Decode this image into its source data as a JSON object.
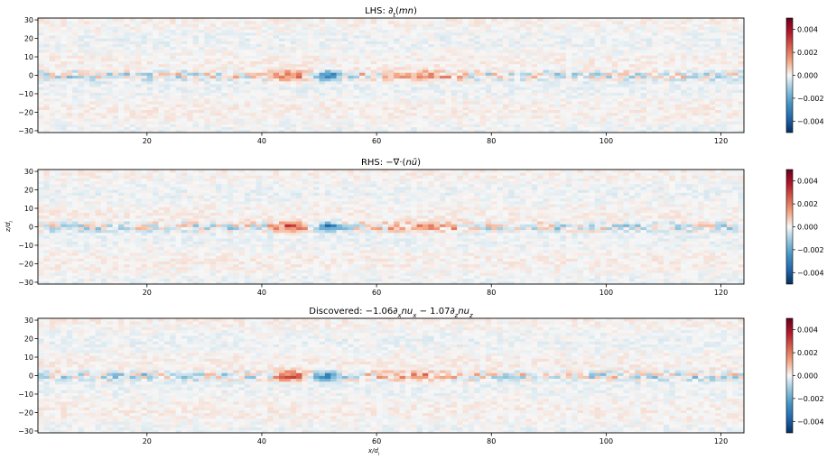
{
  "figure": {
    "xlabel": "x/d",
    "xlabel_sub": "i",
    "ylabel": "z/d",
    "ylabel_sub": "i"
  },
  "chart_data": [
    {
      "type": "heatmap",
      "title": "LHS: ∂t(mn)",
      "title_parts": [
        "LHS: ∂",
        "t",
        "(",
        "mn",
        ")"
      ],
      "xlim": [
        1,
        124
      ],
      "ylim": [
        -31,
        31
      ],
      "xticks": [
        20,
        40,
        60,
        80,
        100,
        120
      ],
      "yticks": [
        30,
        20,
        10,
        0,
        -10,
        -20,
        -30
      ],
      "colormap": "RdBu_r",
      "clim": [
        -0.005,
        0.005
      ],
      "colorbar_ticks": [
        "0.004",
        "0.002",
        "0.000",
        "−0.002",
        "−0.004"
      ],
      "colorbar_values": [
        0.004,
        0.002,
        0.0,
        -0.002,
        -0.004
      ],
      "colors": {
        "positive_peak": "#67001f",
        "negative_peak": "#053061",
        "zero": "#f7f7f7"
      }
    },
    {
      "type": "heatmap",
      "title": "RHS: −∇·(nū)",
      "title_parts": [
        "RHS: −∇·(",
        "nū",
        ")"
      ],
      "xlim": [
        1,
        124
      ],
      "ylim": [
        -31,
        31
      ],
      "xticks": [
        20,
        40,
        60,
        80,
        100,
        120
      ],
      "yticks": [
        30,
        20,
        10,
        0,
        -10,
        -20,
        -30
      ],
      "colormap": "RdBu_r",
      "clim": [
        -0.005,
        0.005
      ],
      "colorbar_ticks": [
        "0.004",
        "0.002",
        "0.000",
        "−0.002",
        "−0.004"
      ],
      "colorbar_values": [
        0.004,
        0.002,
        0.0,
        -0.002,
        -0.004
      ]
    },
    {
      "type": "heatmap",
      "title": "Discovered: −1.06∂xnux − 1.07∂znuz",
      "title_parts": [
        "Discovered: −1.06∂",
        "x",
        "nu",
        "x",
        " − 1.07∂",
        "z",
        "nu",
        "z"
      ],
      "xlim": [
        1,
        124
      ],
      "ylim": [
        -31,
        31
      ],
      "xticks": [
        20,
        40,
        60,
        80,
        100,
        120
      ],
      "yticks": [
        30,
        20,
        10,
        0,
        -10,
        -20,
        -30
      ],
      "colormap": "RdBu_r",
      "clim": [
        -0.005,
        0.005
      ],
      "colorbar_ticks": [
        "0.004",
        "0.002",
        "0.000",
        "−0.002",
        "−0.004"
      ],
      "colorbar_values": [
        0.004,
        0.002,
        0.0,
        -0.002,
        -0.004
      ]
    }
  ]
}
